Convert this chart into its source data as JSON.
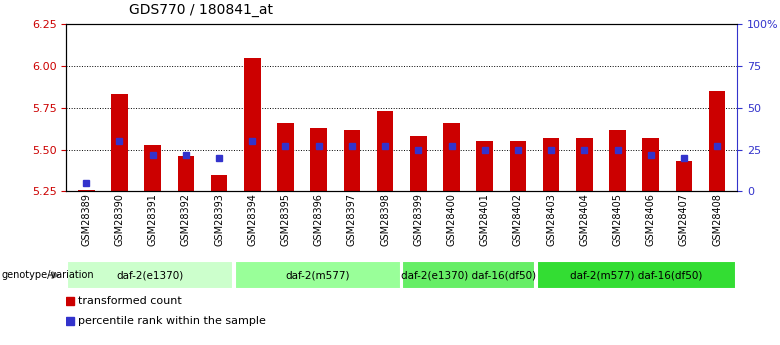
{
  "title": "GDS770 / 180841_at",
  "samples": [
    "GSM28389",
    "GSM28390",
    "GSM28391",
    "GSM28392",
    "GSM28393",
    "GSM28394",
    "GSM28395",
    "GSM28396",
    "GSM28397",
    "GSM28398",
    "GSM28399",
    "GSM28400",
    "GSM28401",
    "GSM28402",
    "GSM28403",
    "GSM28404",
    "GSM28405",
    "GSM28406",
    "GSM28407",
    "GSM28408"
  ],
  "transformed_count": [
    5.26,
    5.83,
    5.53,
    5.46,
    5.35,
    6.05,
    5.66,
    5.63,
    5.62,
    5.73,
    5.58,
    5.66,
    5.55,
    5.55,
    5.57,
    5.57,
    5.62,
    5.57,
    5.43,
    5.85
  ],
  "percentile_rank_pct": [
    5,
    30,
    22,
    22,
    20,
    30,
    27,
    27,
    27,
    27,
    25,
    27,
    25,
    25,
    25,
    25,
    25,
    22,
    20,
    27
  ],
  "bar_color": "#cc0000",
  "blue_color": "#3333cc",
  "ylim_left": [
    5.25,
    6.25
  ],
  "ylim_right": [
    0,
    100
  ],
  "yticks_left": [
    5.25,
    5.5,
    5.75,
    6.0,
    6.25
  ],
  "yticks_right": [
    0,
    25,
    50,
    75,
    100
  ],
  "ytick_labels_right": [
    "0",
    "25",
    "50",
    "75",
    "100%"
  ],
  "grid_lines": [
    5.5,
    5.75,
    6.0
  ],
  "groups": [
    {
      "label": "daf-2(e1370)",
      "start": 0,
      "end": 5,
      "color": "#ccffcc"
    },
    {
      "label": "daf-2(m577)",
      "start": 5,
      "end": 10,
      "color": "#99ff99"
    },
    {
      "label": "daf-2(e1370) daf-16(df50)",
      "start": 10,
      "end": 14,
      "color": "#66ee66"
    },
    {
      "label": "daf-2(m577) daf-16(df50)",
      "start": 14,
      "end": 20,
      "color": "#33dd33"
    }
  ],
  "genotype_label": "genotype/variation",
  "legend_items": [
    {
      "label": "transformed count",
      "color": "#cc0000"
    },
    {
      "label": "percentile rank within the sample",
      "color": "#3333cc"
    }
  ],
  "bar_width": 0.5,
  "title_fontsize": 10,
  "tick_fontsize": 7,
  "group_fontsize": 7.5,
  "legend_fontsize": 8
}
